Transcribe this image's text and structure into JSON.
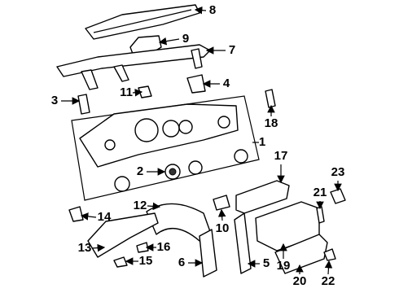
{
  "callouts": [
    {
      "label": "1"
    },
    {
      "label": "2"
    },
    {
      "label": "3"
    },
    {
      "label": "4"
    },
    {
      "label": "5"
    },
    {
      "label": "6"
    },
    {
      "label": "7"
    },
    {
      "label": "8"
    },
    {
      "label": "9"
    },
    {
      "label": "10"
    },
    {
      "label": "11"
    },
    {
      "label": "12"
    },
    {
      "label": "13"
    },
    {
      "label": "14"
    },
    {
      "label": "15"
    },
    {
      "label": "16"
    },
    {
      "label": "17"
    },
    {
      "label": "18"
    },
    {
      "label": "19"
    },
    {
      "label": "20"
    },
    {
      "label": "21"
    },
    {
      "label": "22"
    },
    {
      "label": "23"
    }
  ]
}
